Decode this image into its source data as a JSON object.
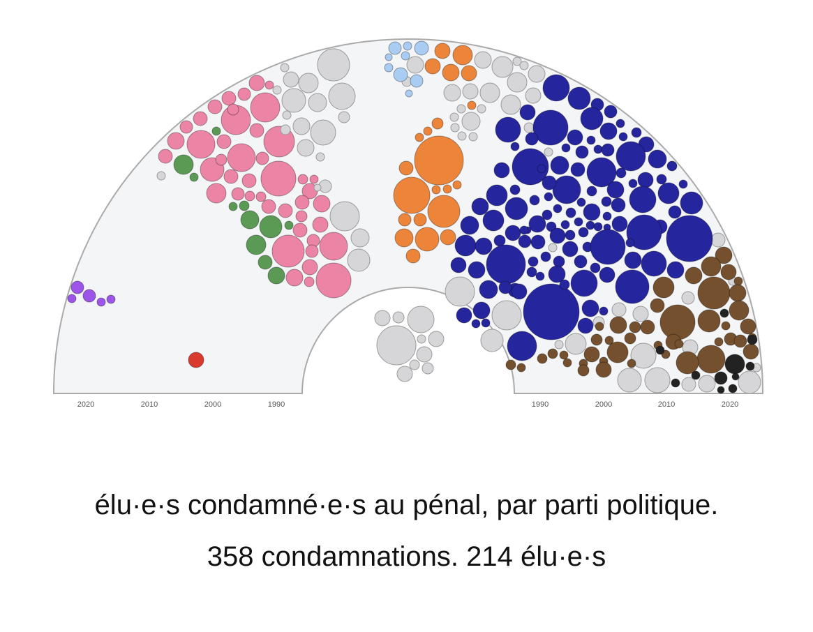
{
  "colors": {
    "background_arc": "#f4f5f7",
    "outline": "#aaaaaa",
    "grey": "#d6d6d8",
    "pink": "#ec84a6",
    "green": "#5b9a55",
    "purple": "#9c55e8",
    "red": "#d93a2e",
    "light_blue": "#a9ccf3",
    "orange": "#ec843a",
    "navy": "#25259e",
    "brown": "#74502e",
    "black": "#222222"
  },
  "caption": {
    "line1": "élu·e·s condamné·e·s au pénal, par parti politique.",
    "line2": "358 condamnations. 214 élu·e·s"
  },
  "chart_data": {
    "type": "bubble-hemicycle",
    "title": "",
    "xlabel": "",
    "ylabel": "",
    "year_axis_left_ticks": [
      "2020",
      "2010",
      "2000",
      "1990"
    ],
    "year_axis_right_ticks": [
      "1990",
      "2000",
      "2010",
      "2020"
    ],
    "year_range": [
      1985,
      2025
    ],
    "grid": false,
    "legend": "none",
    "total_condamnations": 358,
    "total_elus": 214,
    "groups": [
      {
        "color": "purple",
        "approx_count": 5
      },
      {
        "color": "red",
        "approx_count": 1
      },
      {
        "color": "pink",
        "approx_count": 60
      },
      {
        "color": "green",
        "approx_count": 10
      },
      {
        "color": "light_blue",
        "approx_count": 8
      },
      {
        "color": "orange",
        "approx_count": 22
      },
      {
        "color": "grey",
        "approx_count": 60
      },
      {
        "color": "navy",
        "approx_count": 150
      },
      {
        "color": "brown",
        "approx_count": 45
      },
      {
        "color": "black",
        "approx_count": 10
      }
    ]
  }
}
